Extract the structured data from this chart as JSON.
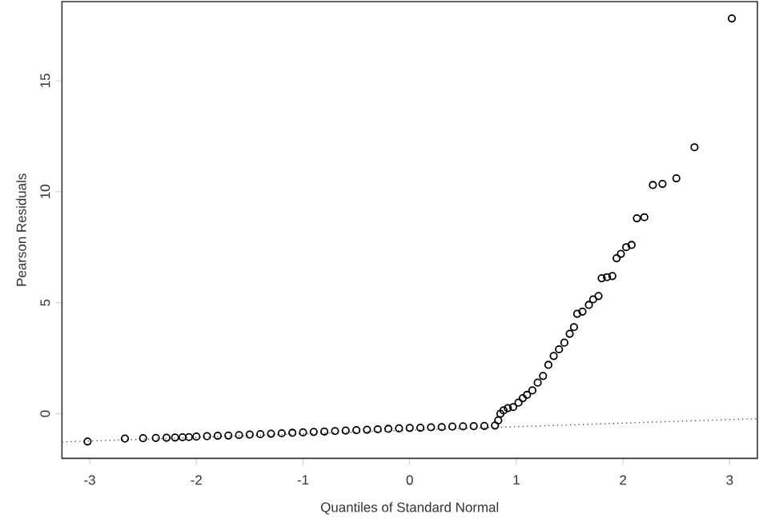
{
  "chart_data": {
    "type": "scatter",
    "xlabel": "Quantiles of Standard Normal",
    "ylabel": "Pearson Residuals",
    "xlim": [
      -3.26,
      3.26
    ],
    "ylim": [
      -2.01,
      18.56
    ],
    "xticks": [
      -3,
      -2,
      -1,
      0,
      1,
      2,
      3
    ],
    "yticks": [
      0,
      5,
      10,
      15
    ],
    "series": [
      {
        "color": "#000000",
        "marker": "circle",
        "x": [
          -3.02,
          -2.67,
          -2.5,
          -2.38,
          -2.28,
          -2.2,
          -2.13,
          -2.07,
          -2.0,
          -1.9,
          -1.8,
          -1.7,
          -1.6,
          -1.5,
          -1.4,
          -1.3,
          -1.2,
          -1.1,
          -1.0,
          -0.9,
          -0.8,
          -0.7,
          -0.6,
          -0.5,
          -0.4,
          -0.3,
          -0.2,
          -0.1,
          0.0,
          0.1,
          0.2,
          0.3,
          0.4,
          0.5,
          0.6,
          0.7,
          0.8,
          0.83,
          0.85,
          0.88,
          0.92,
          0.97,
          1.02,
          1.06,
          1.1,
          1.15,
          1.2,
          1.25,
          1.3,
          1.35,
          1.4,
          1.45,
          1.5,
          1.54,
          1.57,
          1.62,
          1.68,
          1.72,
          1.77,
          1.8,
          1.85,
          1.9,
          1.94,
          1.98,
          2.03,
          2.08,
          2.13,
          2.2,
          2.28,
          2.37,
          2.5,
          2.67,
          3.02
        ],
        "values": [
          -1.25,
          -1.12,
          -1.1,
          -1.09,
          -1.08,
          -1.07,
          -1.06,
          -1.05,
          -1.03,
          -1.01,
          -0.99,
          -0.98,
          -0.96,
          -0.94,
          -0.92,
          -0.9,
          -0.88,
          -0.86,
          -0.84,
          -0.82,
          -0.8,
          -0.78,
          -0.76,
          -0.74,
          -0.72,
          -0.7,
          -0.68,
          -0.66,
          -0.64,
          -0.63,
          -0.61,
          -0.6,
          -0.58,
          -0.57,
          -0.56,
          -0.55,
          -0.53,
          -0.3,
          0.0,
          0.15,
          0.25,
          0.3,
          0.5,
          0.7,
          0.85,
          1.05,
          1.4,
          1.7,
          2.2,
          2.6,
          2.9,
          3.2,
          3.6,
          3.9,
          4.5,
          4.6,
          4.9,
          5.15,
          5.3,
          6.1,
          6.15,
          6.2,
          7.0,
          7.2,
          7.5,
          7.6,
          8.8,
          8.85,
          10.3,
          10.35,
          10.6,
          12.0,
          17.8
        ]
      },
      {
        "type": "line",
        "color": "#555555",
        "line_style": "dotted",
        "x": [
          -3.26,
          3.26
        ],
        "values": [
          -1.27,
          -0.22
        ]
      }
    ]
  }
}
